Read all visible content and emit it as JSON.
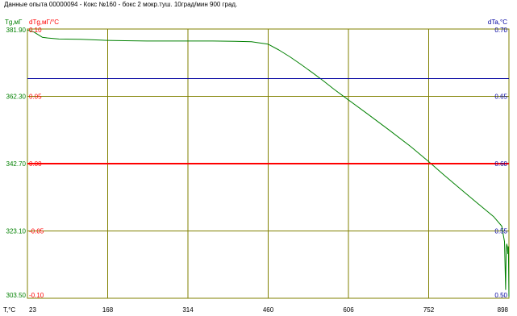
{
  "title": "Данные опыта 00000094 - Кокс №160 - бокс 2 мокр.туш. 10град/мин 900 град.",
  "colors": {
    "tg": "#008000",
    "dtg": "#ff0000",
    "dta": "#0000a0",
    "grid": "#808000",
    "background": "#ffffff"
  },
  "chart_data": {
    "type": "line",
    "title": "Данные опыта 00000094 - Кокс №160 - бокс 2 мокр.туш. 10град/мин 900 град.",
    "grid": true,
    "axes": {
      "x": {
        "label": "T,°C",
        "ticks": [
          "23",
          "168",
          "314",
          "460",
          "606",
          "752",
          "898"
        ],
        "range": [
          23,
          898
        ]
      },
      "y_tg": {
        "label": "Tg,мГ",
        "ticks": [
          "381.90",
          "362.30",
          "342.70",
          "323.10",
          "303.50"
        ],
        "range": [
          303.5,
          381.9
        ]
      },
      "y_dtg": {
        "label": "dTg,мГ/°C",
        "ticks": [
          "0.10",
          "0.05",
          "0.00",
          "-0.05",
          "-0.10"
        ],
        "range": [
          -0.1,
          0.1
        ]
      },
      "y_dta": {
        "label": "dTa,°C",
        "ticks": [
          "0.70",
          "0.65",
          "0.60",
          "0.55",
          "0.50"
        ],
        "range": [
          0.5,
          0.7
        ]
      }
    },
    "series": [
      {
        "name": "Tg",
        "axis": "y_tg",
        "x": [
          23,
          35,
          50,
          60,
          80,
          120,
          168,
          200,
          240,
          300,
          360,
          400,
          430,
          460,
          480,
          500,
          520,
          540,
          560,
          580,
          606,
          640,
          680,
          720,
          752,
          780,
          810,
          840,
          870,
          885,
          890,
          892,
          893,
          894,
          895,
          896,
          897,
          898
        ],
        "values": [
          381.6,
          381.0,
          379.5,
          379.3,
          379.0,
          378.9,
          378.6,
          378.5,
          378.4,
          378.4,
          378.4,
          378.3,
          378.2,
          377.5,
          375.8,
          373.8,
          371.6,
          369.3,
          366.9,
          364.4,
          361.3,
          357.3,
          352.5,
          347.6,
          343.3,
          339.4,
          335.3,
          331.3,
          327.3,
          324.5,
          320.0,
          306.0,
          318.0,
          319.3,
          318.6,
          316.5,
          318.5,
          304.0
        ]
      },
      {
        "name": "dTg",
        "axis": "y_dtg",
        "x": [
          23,
          898
        ],
        "values": [
          0.0,
          0.0
        ]
      },
      {
        "name": "dTa",
        "axis": "y_dta",
        "x": [
          23,
          898
        ],
        "values": [
          0.6632,
          0.6632
        ]
      }
    ]
  }
}
